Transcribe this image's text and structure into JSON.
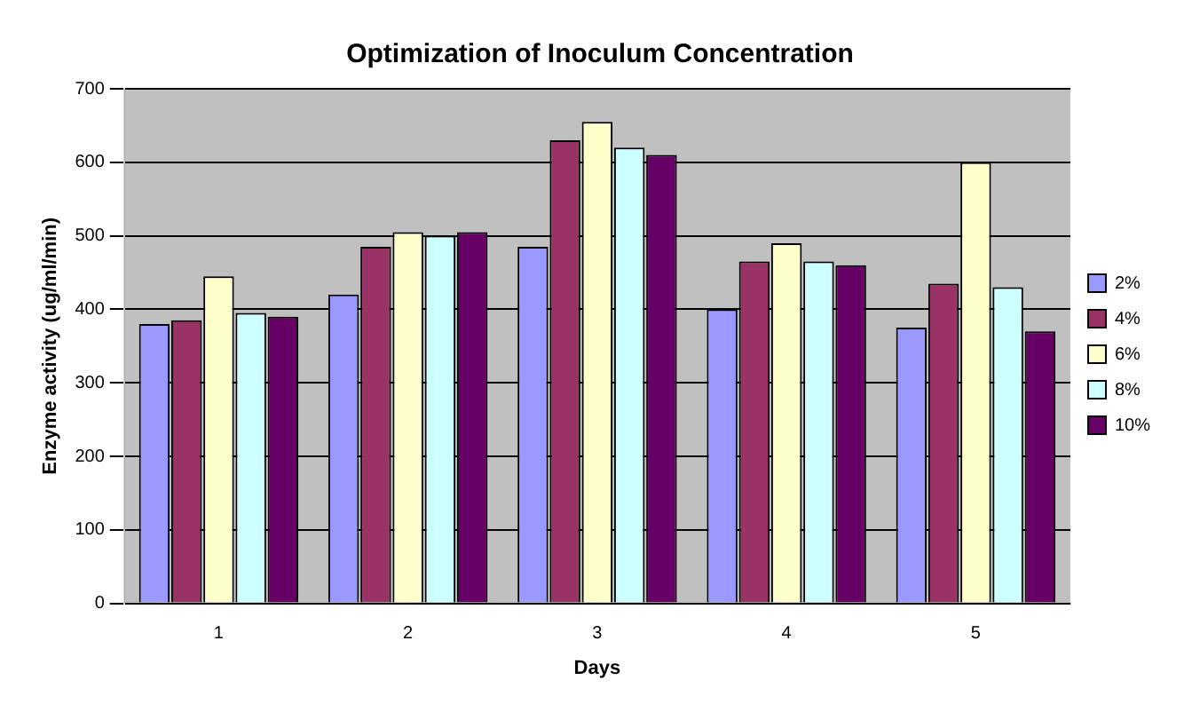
{
  "chart_data": {
    "type": "bar",
    "title": "Optimization of Inoculum Concentration",
    "xlabel": "Days",
    "ylabel": "Enzyme activity (ug/ml/min)",
    "categories": [
      "1",
      "2",
      "3",
      "4",
      "5"
    ],
    "series": [
      {
        "name": "2%",
        "color": "#9999ff",
        "values": [
          380,
          420,
          485,
          400,
          375
        ]
      },
      {
        "name": "4%",
        "color": "#993366",
        "values": [
          385,
          485,
          630,
          465,
          435
        ]
      },
      {
        "name": "6%",
        "color": "#ffffcc",
        "values": [
          445,
          505,
          655,
          490,
          600
        ]
      },
      {
        "name": "8%",
        "color": "#ccffff",
        "values": [
          395,
          500,
          620,
          465,
          430
        ]
      },
      {
        "name": "10%",
        "color": "#660066",
        "values": [
          390,
          505,
          610,
          460,
          370
        ]
      }
    ],
    "ylim": [
      0,
      700
    ],
    "yticks": [
      0,
      100,
      200,
      300,
      400,
      500,
      600,
      700
    ],
    "grid": "y",
    "legend": "right"
  }
}
